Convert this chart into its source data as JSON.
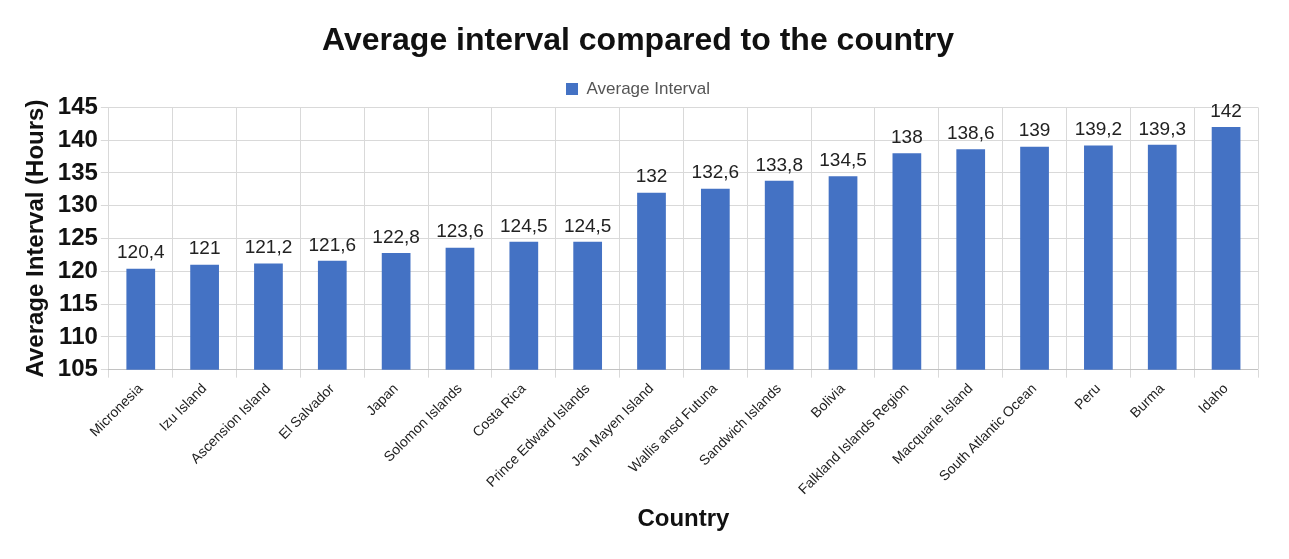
{
  "chart_data": {
    "type": "bar",
    "title": "Average interval compared to the country",
    "xlabel": "Country",
    "ylabel": "Average Interval (Hours)",
    "categories": [
      "Micronesia",
      "Izu Island",
      "Ascension Island",
      "El Salvador",
      "Japan",
      "Solomon Islands",
      "Costa Rica",
      "Prince Edward Islands",
      "Jan Mayen Island",
      "Wallis ansd Futuna",
      "Sandwich Islands",
      "Bolivia",
      "Falkland Islands Region",
      "Macquarie Island",
      "South Atlantic Ocean",
      "Peru",
      "Burma",
      "Idaho"
    ],
    "series": [
      {
        "name": "Average Interval",
        "color": "#4472c4",
        "values": [
          120.4,
          121,
          121.2,
          121.6,
          122.8,
          123.6,
          124.5,
          124.5,
          132,
          132.6,
          133.8,
          134.5,
          138,
          138.6,
          139,
          139.2,
          139.3,
          142
        ],
        "value_labels": [
          "120,4",
          "121",
          "121,2",
          "121,6",
          "122,8",
          "123,6",
          "124,5",
          "124,5",
          "132",
          "132,6",
          "133,8",
          "134,5",
          "138",
          "138,6",
          "139",
          "139,2",
          "139,3",
          "142"
        ]
      }
    ],
    "ylim": [
      105,
      145
    ],
    "yticks": [
      105,
      110,
      115,
      120,
      125,
      130,
      135,
      140,
      145
    ],
    "grid": true,
    "legend": "top"
  }
}
